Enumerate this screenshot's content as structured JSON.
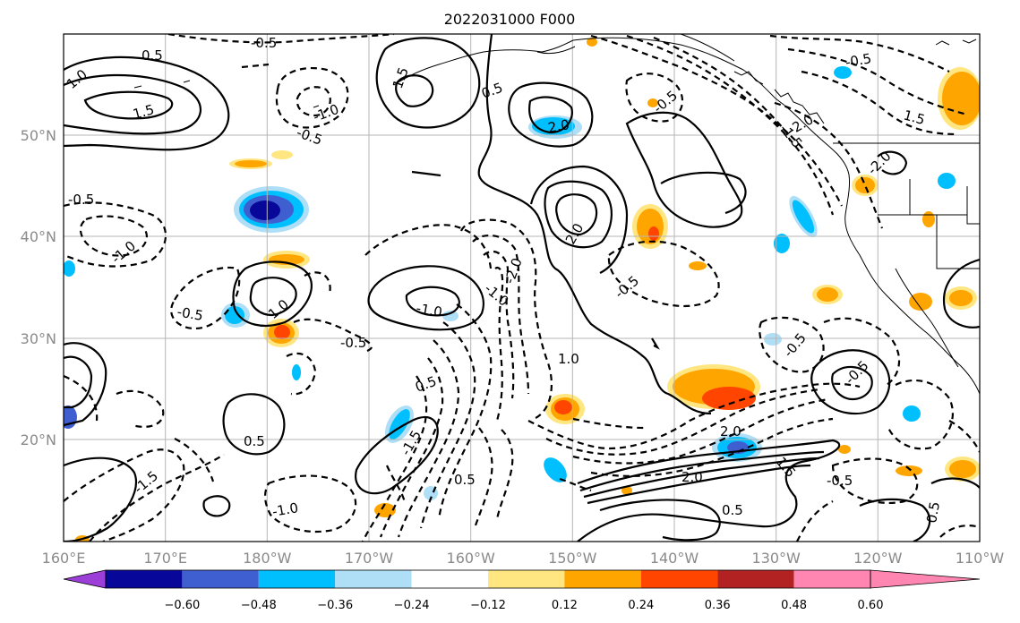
{
  "title": "2022031000 F000",
  "lon_labels": [
    "160°E",
    "170°E",
    "180°W",
    "170°W",
    "160°W",
    "150°W",
    "140°W",
    "130°W",
    "120°W",
    "110°W"
  ],
  "lat_labels": [
    "50°N",
    "40°N",
    "30°N",
    "20°N"
  ],
  "colorbar": {
    "tick_labels": [
      "−0.60",
      "−0.48",
      "−0.36",
      "−0.24",
      "−0.12",
      "0.12",
      "0.24",
      "0.36",
      "0.48",
      "0.60"
    ],
    "colors": [
      "#9b3fd8",
      "#07079a",
      "#3f5fd0",
      "#00bfff",
      "#aedff7",
      "#ffffff",
      "#ffe680",
      "#ffa500",
      "#ff4500",
      "#b22222",
      "#ff86b0"
    ]
  },
  "contour_labels": {
    "solid": [
      "0.5",
      "1.0",
      "1.5",
      "2.0",
      "2.0",
      "1.5",
      "0.5",
      "1.0",
      "2.0",
      "0.5",
      "1.5",
      "1.0",
      "0.5",
      "1.5",
      "0.5",
      "2.0",
      "0.5",
      "0.5"
    ],
    "dashed": [
      "-0.5",
      "-1.0",
      "-0.5",
      "-1.0",
      "-0.5",
      "-1.0",
      "-0.5",
      "-1.0",
      "-2.0",
      "-1.5",
      "-0.5",
      "-0.5",
      "-1.0",
      "-0.5",
      "-2.0",
      "-1.5",
      "-0.5",
      "-0.5",
      "-2.0",
      "-0.5",
      "-1.5",
      "-0.5"
    ]
  }
}
